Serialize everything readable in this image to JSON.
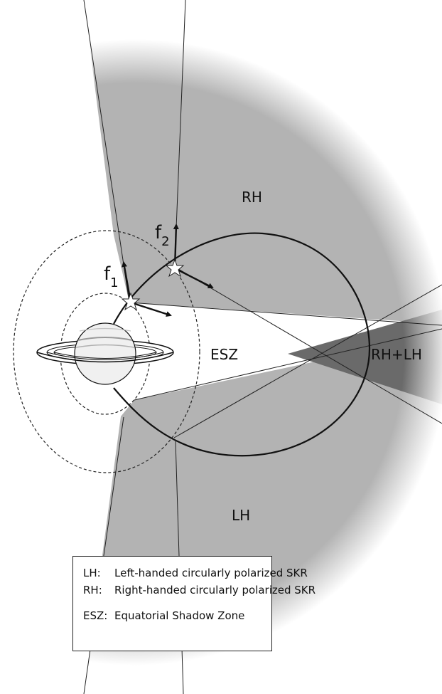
{
  "regions": {
    "rh": "RH",
    "lh": "LH",
    "esz": "ESZ",
    "rh_lh": "RH+LH"
  },
  "sources": {
    "f1_base": "f",
    "f1_sub": "1",
    "f2_base": "f",
    "f2_sub": "2"
  },
  "legend": {
    "items": [
      {
        "key": "LH:",
        "text": "Left-handed circularly polarized SKR"
      },
      {
        "key": "RH:",
        "text": "Right-handed circularly polarized SKR"
      },
      {
        "key": "ESZ:",
        "text": "Equatorial Shadow Zone"
      }
    ]
  },
  "colors": {
    "cone_gray": "#b3b3b3",
    "overlap_gray": "#6e6e6e",
    "outline": "#111111"
  }
}
